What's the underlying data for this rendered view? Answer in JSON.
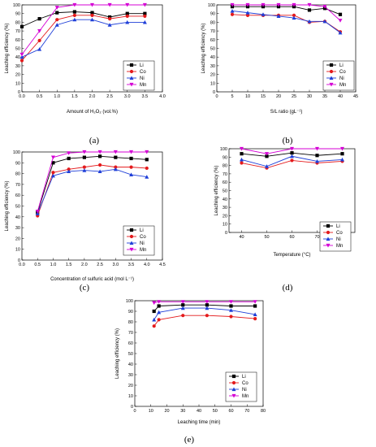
{
  "colors": {
    "Li": "#000000",
    "Co": "#e41a1c",
    "Ni": "#1f3fd8",
    "Mn": "#d400d4"
  },
  "chart_data": [
    {
      "panel": "(a)",
      "type": "line",
      "xlabel": "Amount of H₂O₂ (vol.%)",
      "ylabel": "Leaching efficiency (%)",
      "xlim": [
        0,
        4
      ],
      "ylim": [
        0,
        100
      ],
      "xticks": [
        "0.0",
        "0.5",
        "1.0",
        "1.5",
        "2.0",
        "2.5",
        "3.0",
        "3.5",
        "4.0"
      ],
      "yticks": [
        "0",
        "10",
        "20",
        "30",
        "40",
        "50",
        "60",
        "70",
        "80",
        "90",
        "100"
      ],
      "x": [
        0,
        0.5,
        1.0,
        1.5,
        2.0,
        2.5,
        3.0,
        3.5
      ],
      "series": [
        {
          "name": "Li",
          "values": [
            75,
            84,
            91,
            92,
            91,
            86,
            90,
            90
          ]
        },
        {
          "name": "Co",
          "values": [
            36,
            59,
            83,
            88,
            88,
            84,
            87,
            87
          ]
        },
        {
          "name": "Ni",
          "values": [
            40,
            49,
            77,
            83,
            83,
            77,
            80,
            80
          ]
        },
        {
          "name": "Mn",
          "values": [
            43,
            70,
            97,
            100,
            100,
            100,
            100,
            100
          ]
        }
      ],
      "legend": "bottom-right"
    },
    {
      "panel": "(b)",
      "type": "line",
      "xlabel": "S/L ratio (gL⁻¹)",
      "ylabel": "Leaching efficiency (%)",
      "xlim": [
        0,
        45
      ],
      "ylim": [
        0,
        100
      ],
      "xticks": [
        "0",
        "5",
        "10",
        "15",
        "20",
        "25",
        "30",
        "35",
        "40",
        "45"
      ],
      "yticks": [
        "0",
        "10",
        "20",
        "30",
        "40",
        "50",
        "60",
        "70",
        "80",
        "90",
        "100"
      ],
      "x": [
        5,
        10,
        15,
        20,
        25,
        30,
        35,
        40
      ],
      "series": [
        {
          "name": "Li",
          "values": [
            98,
            98,
            98,
            98,
            98,
            94,
            96,
            89
          ]
        },
        {
          "name": "Co",
          "values": [
            89,
            88,
            88,
            88,
            88,
            80,
            81,
            69
          ]
        },
        {
          "name": "Ni",
          "values": [
            93,
            91,
            89,
            87,
            85,
            81,
            81,
            68
          ]
        },
        {
          "name": "Mn",
          "values": [
            100,
            100,
            100,
            100,
            100,
            100,
            98,
            82
          ]
        }
      ],
      "legend": "bottom-right"
    },
    {
      "panel": "(c)",
      "type": "line",
      "xlabel": "Concentration of sulfuric acid (mol L⁻¹)",
      "ylabel": "Leaching efficiency (%)",
      "xlim": [
        0,
        4.5
      ],
      "ylim": [
        0,
        100
      ],
      "xticks": [
        "0.0",
        "0.5",
        "1.0",
        "1.5",
        "2.0",
        "2.5",
        "3.0",
        "3.5",
        "4.0",
        "4.5"
      ],
      "yticks": [
        "0",
        "10",
        "20",
        "30",
        "40",
        "50",
        "60",
        "70",
        "80",
        "90",
        "100"
      ],
      "x": [
        0.5,
        1.0,
        1.5,
        2.0,
        2.5,
        3.0,
        3.5,
        4.0
      ],
      "series": [
        {
          "name": "Li",
          "values": [
            44,
            90,
            94,
            95,
            96,
            95,
            94,
            93
          ]
        },
        {
          "name": "Co",
          "values": [
            41,
            81,
            84,
            86,
            88,
            86,
            86,
            85
          ]
        },
        {
          "name": "Ni",
          "values": [
            43,
            78,
            82,
            83,
            82,
            84,
            79,
            77
          ]
        },
        {
          "name": "Mn",
          "values": [
            45,
            95,
            99,
            100,
            100,
            100,
            100,
            100
          ]
        }
      ],
      "legend": "bottom-right"
    },
    {
      "panel": "(d)",
      "type": "line",
      "xlabel": "Temperature (°C)",
      "ylabel": "Leaching efficiency (%)",
      "xlim": [
        35,
        85
      ],
      "ylim": [
        0,
        100
      ],
      "xticks": [
        "40",
        "50",
        "60",
        "70",
        "80"
      ],
      "yticks": [
        "0",
        "10",
        "20",
        "30",
        "40",
        "50",
        "60",
        "70",
        "80",
        "90",
        "100"
      ],
      "x": [
        40,
        50,
        60,
        70,
        80
      ],
      "series": [
        {
          "name": "Li",
          "values": [
            94,
            91,
            95,
            92,
            94
          ]
        },
        {
          "name": "Co",
          "values": [
            83,
            77,
            86,
            83,
            85
          ]
        },
        {
          "name": "Ni",
          "values": [
            87,
            79,
            91,
            85,
            87
          ]
        },
        {
          "name": "Mn",
          "values": [
            100,
            94,
            100,
            100,
            100
          ]
        }
      ],
      "legend": "bottom-right"
    },
    {
      "panel": "(e)",
      "type": "line",
      "xlabel": "Leaching time (min)",
      "ylabel": "Leaching efficiency (%)",
      "xlim": [
        0,
        80
      ],
      "ylim": [
        0,
        100
      ],
      "xticks": [
        "0",
        "10",
        "20",
        "30",
        "40",
        "50",
        "60",
        "70",
        "80"
      ],
      "yticks": [
        "0",
        "10",
        "20",
        "30",
        "40",
        "50",
        "60",
        "70",
        "80",
        "90",
        "100"
      ],
      "x": [
        12,
        15,
        30,
        45,
        60,
        75
      ],
      "series": [
        {
          "name": "Li",
          "values": [
            90,
            95,
            96,
            96,
            95,
            95
          ]
        },
        {
          "name": "Co",
          "values": [
            76,
            82,
            86,
            86,
            85,
            83
          ]
        },
        {
          "name": "Ni",
          "values": [
            82,
            89,
            93,
            93,
            91,
            87
          ]
        },
        {
          "name": "Mn",
          "values": [
            98,
            99,
            99,
            99,
            99,
            99
          ]
        }
      ],
      "legend": "bottom-right"
    }
  ]
}
